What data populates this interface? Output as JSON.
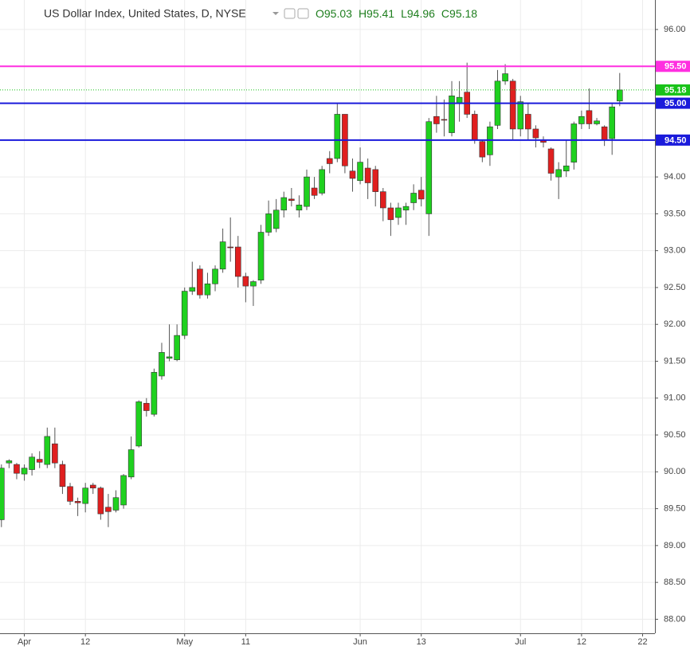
{
  "chart_data": {
    "type": "candlestick",
    "title": "US Dollar Index, United States, D, NYSE",
    "header_values": [
      "O95.03",
      "H95.41",
      "L94.96",
      "C95.18"
    ],
    "categories": [
      null,
      null,
      null,
      "Apr",
      null,
      null,
      null,
      null,
      null,
      null,
      null,
      "12",
      null,
      null,
      null,
      null,
      null,
      null,
      null,
      null,
      null,
      null,
      null,
      null,
      "May",
      null,
      null,
      null,
      null,
      null,
      null,
      null,
      "11",
      null,
      null,
      null,
      null,
      null,
      null,
      null,
      null,
      null,
      null,
      null,
      null,
      null,
      null,
      "Jun",
      null,
      null,
      null,
      null,
      null,
      null,
      null,
      "13",
      null,
      null,
      null,
      null,
      null,
      null,
      null,
      null,
      null,
      null,
      null,
      null,
      "Jul",
      null,
      null,
      null,
      null,
      null,
      null,
      null,
      "12",
      null,
      null,
      null,
      null,
      null,
      null,
      null,
      "22"
    ],
    "open": [
      89.35,
      90.12,
      90.1,
      89.97,
      90.03,
      90.17,
      90.1,
      90.38,
      90.1,
      89.8,
      89.6,
      89.57,
      89.82,
      89.78,
      89.52,
      89.48,
      89.55,
      89.93,
      90.35,
      90.93,
      90.78,
      91.3,
      91.54,
      91.52,
      91.85,
      92.45,
      92.75,
      92.4,
      92.55,
      92.75,
      93.05,
      93.05,
      92.65,
      92.52,
      92.6,
      93.25,
      93.3,
      93.55,
      93.7,
      93.55,
      93.6,
      93.85,
      93.78,
      94.25,
      94.25,
      94.85,
      94.08,
      93.95,
      94.12,
      94.1,
      93.8,
      93.58,
      93.45,
      93.55,
      93.65,
      93.82,
      93.5,
      94.82,
      94.78,
      94.6,
      95.0,
      95.15,
      94.85,
      94.48,
      94.3,
      94.7,
      95.3,
      95.3,
      94.65,
      94.85,
      94.65,
      94.5,
      94.38,
      94.0,
      94.08,
      94.2,
      94.72,
      94.9,
      94.72,
      94.68,
      94.52,
      95.03,
      null,
      null,
      null
    ],
    "high": [
      90.1,
      90.17,
      90.12,
      90.1,
      90.25,
      90.28,
      90.6,
      90.6,
      90.15,
      89.85,
      89.65,
      89.85,
      89.85,
      89.8,
      89.7,
      89.75,
      89.97,
      90.48,
      90.97,
      91.0,
      91.4,
      91.75,
      92.0,
      92.0,
      92.5,
      92.85,
      92.8,
      92.7,
      92.8,
      93.3,
      93.45,
      93.2,
      92.7,
      92.6,
      93.35,
      93.68,
      93.7,
      93.8,
      93.85,
      93.75,
      94.1,
      94.0,
      94.15,
      94.35,
      95.0,
      94.85,
      94.25,
      94.4,
      94.25,
      94.15,
      93.85,
      93.65,
      93.65,
      93.65,
      93.9,
      94.0,
      94.8,
      95.1,
      95.05,
      95.3,
      95.3,
      95.55,
      94.9,
      94.5,
      94.75,
      95.45,
      95.53,
      95.33,
      95.1,
      95.0,
      94.7,
      94.55,
      94.4,
      94.2,
      94.5,
      94.75,
      94.9,
      95.2,
      94.8,
      94.7,
      95.0,
      95.41,
      null,
      null,
      null
    ],
    "low": [
      89.25,
      90.05,
      89.9,
      89.88,
      89.95,
      90.05,
      90.05,
      90.05,
      89.7,
      89.55,
      89.4,
      89.45,
      89.7,
      89.35,
      89.25,
      89.45,
      89.5,
      89.9,
      90.33,
      90.75,
      90.75,
      91.25,
      91.5,
      91.5,
      91.8,
      92.4,
      92.35,
      92.35,
      92.45,
      92.7,
      92.85,
      92.5,
      92.3,
      92.25,
      92.55,
      93.2,
      93.25,
      93.45,
      93.6,
      93.45,
      93.55,
      93.7,
      93.75,
      94.05,
      94.2,
      94.05,
      93.8,
      93.9,
      93.7,
      93.6,
      93.4,
      93.2,
      93.35,
      93.35,
      93.55,
      93.6,
      93.2,
      94.6,
      94.55,
      94.55,
      94.75,
      94.8,
      94.45,
      94.2,
      94.15,
      94.65,
      95.25,
      94.5,
      94.55,
      94.5,
      94.4,
      94.4,
      93.95,
      93.7,
      94.0,
      94.1,
      94.65,
      94.65,
      94.7,
      94.42,
      94.3,
      94.96,
      null,
      null,
      null
    ],
    "close": [
      90.05,
      90.15,
      89.98,
      90.05,
      90.2,
      90.13,
      90.48,
      90.12,
      89.8,
      89.6,
      89.58,
      89.78,
      89.78,
      89.43,
      89.46,
      89.65,
      89.95,
      90.3,
      90.95,
      90.83,
      91.35,
      91.62,
      91.56,
      91.85,
      92.45,
      92.5,
      92.4,
      92.55,
      92.75,
      93.12,
      93.04,
      92.65,
      92.52,
      92.58,
      93.25,
      93.5,
      93.55,
      93.72,
      93.68,
      93.62,
      94.0,
      93.75,
      94.1,
      94.18,
      94.85,
      94.15,
      93.98,
      94.2,
      93.92,
      93.8,
      93.58,
      93.42,
      93.58,
      93.6,
      93.78,
      93.7,
      94.75,
      94.72,
      94.77,
      95.1,
      95.08,
      94.85,
      94.5,
      94.27,
      94.68,
      95.3,
      95.4,
      94.65,
      95.02,
      94.65,
      94.53,
      94.47,
      94.05,
      94.1,
      94.15,
      94.72,
      94.82,
      94.72,
      94.76,
      94.5,
      94.95,
      95.18,
      null,
      null,
      null
    ],
    "up_color": "#1fd11f",
    "down_color": "#e01f1f",
    "levels": [
      {
        "value": 95.5,
        "label": "95.50",
        "color": "#ff2fe0",
        "style": "solid"
      },
      {
        "value": 95.18,
        "label": "95.18",
        "color": "#19c319",
        "style": "dotted"
      },
      {
        "value": 95.0,
        "label": "95.00",
        "color": "#1a1adb",
        "style": "solid"
      },
      {
        "value": 94.5,
        "label": "94.50",
        "color": "#1a1adb",
        "style": "solid"
      }
    ],
    "ylim": [
      87.81,
      96.4
    ],
    "yticks": [
      {
        "value": 88,
        "label": "88.00"
      },
      {
        "value": 88.5,
        "label": "88.50"
      },
      {
        "value": 89,
        "label": "89.00"
      },
      {
        "value": 89.5,
        "label": "89.50"
      },
      {
        "value": 90,
        "label": "90.00"
      },
      {
        "value": 90.5,
        "label": "90.50"
      },
      {
        "value": 91,
        "label": "91.00"
      },
      {
        "value": 91.5,
        "label": "91.50"
      },
      {
        "value": 92,
        "label": "92.00"
      },
      {
        "value": 92.5,
        "label": "92.50"
      },
      {
        "value": 93,
        "label": "93.00"
      },
      {
        "value": 93.5,
        "label": "93.50"
      },
      {
        "value": 94,
        "label": "94.00"
      },
      {
        "value": 94.5,
        "label": "94.50"
      },
      {
        "value": 95,
        "label": "95.00"
      },
      {
        "value": 95.5,
        "label": "95.50"
      },
      {
        "value": 96,
        "label": "96.00"
      }
    ],
    "grid": true
  }
}
